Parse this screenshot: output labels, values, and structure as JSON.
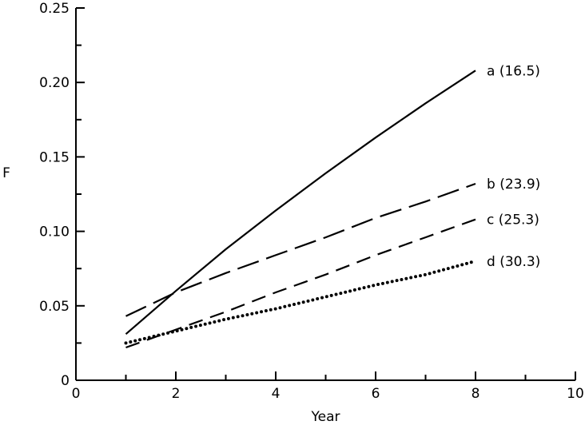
{
  "chart_data": {
    "type": "line",
    "title": "",
    "xlabel": "Year",
    "ylabel": "F",
    "xlim": [
      0,
      10
    ],
    "ylim": [
      0,
      0.25
    ],
    "xticks": [
      0,
      2,
      4,
      6,
      8,
      10
    ],
    "xtick_labels": [
      "0",
      "2",
      "4",
      "6",
      "8",
      "10"
    ],
    "yticks": [
      0,
      0.05,
      0.1,
      0.15,
      0.2,
      0.25
    ],
    "ytick_labels": [
      "0",
      "0.05",
      "0.10",
      "0.15",
      "0.20",
      "0.25"
    ],
    "grid": false,
    "legend": "inline-labels-right",
    "series": [
      {
        "name": "a (16.5)",
        "style": "solid",
        "color": "#000000",
        "x": [
          1,
          2,
          3,
          4,
          5,
          6,
          7,
          8
        ],
        "y": [
          0.031,
          0.06,
          0.088,
          0.114,
          0.139,
          0.163,
          0.186,
          0.208
        ]
      },
      {
        "name": "b (23.9)",
        "style": "long-dash",
        "color": "#000000",
        "x": [
          1,
          2,
          3,
          4,
          5,
          6,
          7,
          8
        ],
        "y": [
          0.043,
          0.059,
          0.072,
          0.084,
          0.096,
          0.109,
          0.12,
          0.132
        ]
      },
      {
        "name": "c (25.3)",
        "style": "dash",
        "color": "#000000",
        "x": [
          1,
          2,
          3,
          4,
          5,
          6,
          7,
          8
        ],
        "y": [
          0.022,
          0.034,
          0.046,
          0.059,
          0.071,
          0.084,
          0.096,
          0.108
        ]
      },
      {
        "name": "d (30.3)",
        "style": "dotted",
        "color": "#000000",
        "x": [
          1,
          2,
          3,
          4,
          5,
          6,
          7,
          8
        ],
        "y": [
          0.025,
          0.033,
          0.041,
          0.048,
          0.056,
          0.064,
          0.071,
          0.08
        ]
      }
    ]
  }
}
